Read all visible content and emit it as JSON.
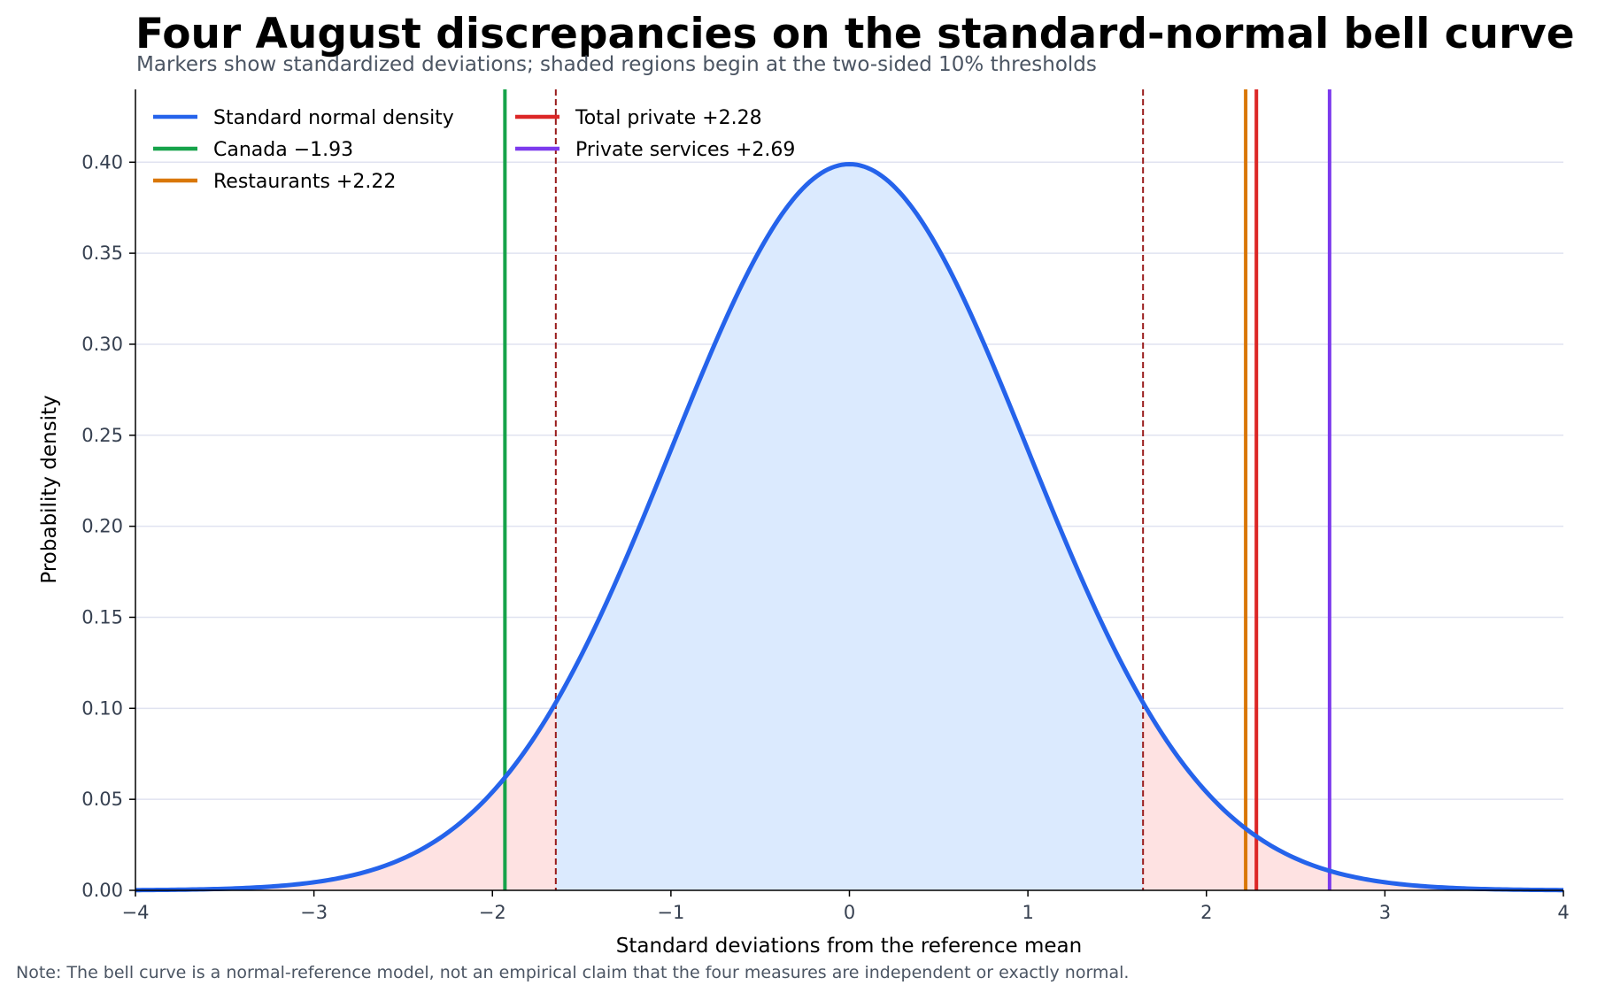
{
  "chart_data": {
    "type": "line",
    "title": "Four August discrepancies on the standard-normal bell curve",
    "subtitle": "Markers show standardized deviations; shaded regions begin at the two-sided 10% thresholds",
    "xlabel": "Standard deviations from the reference mean",
    "ylabel": "Probability density",
    "note": "Note: The bell curve is a normal-reference model, not an empirical claim that the four measures are independent or exactly normal.",
    "xlim": [
      -4,
      4
    ],
    "ylim": [
      0,
      0.44
    ],
    "x_ticks": [
      -4,
      -3,
      -2,
      -1,
      0,
      1,
      2,
      3,
      4
    ],
    "x_tick_labels": [
      "−4",
      "−3",
      "−2",
      "−1",
      "0",
      "1",
      "2",
      "3",
      "4"
    ],
    "y_ticks": [
      0,
      0.05,
      0.1,
      0.15,
      0.2,
      0.25,
      0.3,
      0.35,
      0.4
    ],
    "y_tick_labels": [
      "0.00",
      "0.05",
      "0.10",
      "0.15",
      "0.20",
      "0.25",
      "0.30",
      "0.35",
      "0.40"
    ],
    "grid": "horizontal",
    "legend_position": "top-left",
    "curve": {
      "name": "Standard normal density",
      "mean": 0,
      "sd": 1,
      "color": "#2563eb"
    },
    "thresholds": {
      "values": [
        -1.645,
        1.645
      ],
      "color": "#991b1b",
      "style": "dashed"
    },
    "shading": {
      "center_color": "#dbeafe",
      "tail_color": "#fee2e2"
    },
    "markers": [
      {
        "name": "Canada −1.93",
        "x": -1.93,
        "color": "#16a34a"
      },
      {
        "name": "Restaurants +2.22",
        "x": 2.22,
        "color": "#d97706"
      },
      {
        "name": "Total private +2.28",
        "x": 2.28,
        "color": "#dc2626"
      },
      {
        "name": "Private services +2.69",
        "x": 2.69,
        "color": "#7c3aed"
      }
    ],
    "legend": [
      {
        "label": "Standard normal density",
        "color": "#2563eb"
      },
      {
        "label": "Canada −1.93",
        "color": "#16a34a"
      },
      {
        "label": "Restaurants +2.22",
        "color": "#d97706"
      },
      {
        "label": "Total private +2.28",
        "color": "#dc2626"
      },
      {
        "label": "Private services +2.69",
        "color": "#7c3aed"
      }
    ]
  }
}
